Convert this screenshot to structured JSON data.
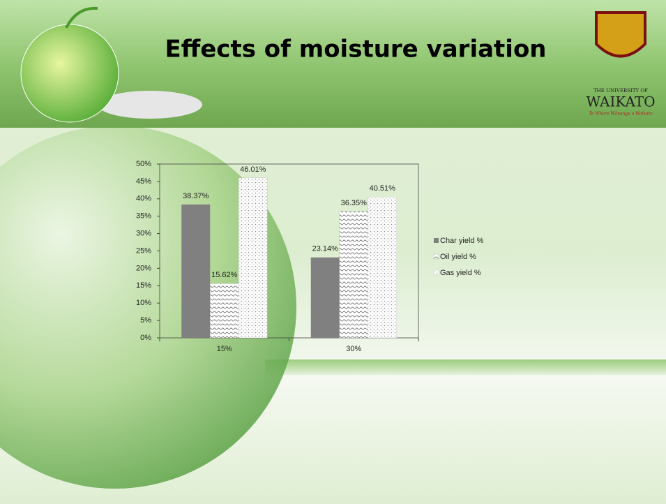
{
  "logo": {
    "line1": "THE UNIVERSITY OF",
    "line2": "WAIKATO",
    "motto": "Te Whare Wānanga o Waikato"
  },
  "chart_data": {
    "type": "bar",
    "title": "Effects of moisture variation",
    "categories": [
      "15%",
      "30%"
    ],
    "series": [
      {
        "name": "Char yield %",
        "color": "#808080",
        "values": [
          38.37,
          23.14
        ],
        "value_labels": [
          "38.37%",
          "23.14%"
        ]
      },
      {
        "name": "Oil yield %",
        "color": "#9a9a9a",
        "values": [
          15.62,
          36.35
        ],
        "value_labels": [
          "15.62%",
          "36.35%"
        ]
      },
      {
        "name": "Gas yield %",
        "color": "#b0b0b0",
        "values": [
          46.01,
          40.51
        ],
        "value_labels": [
          "46.01%",
          "40.51%"
        ]
      }
    ],
    "ylim": [
      0,
      50
    ],
    "yticks": [
      {
        "value": 0,
        "label": "0%"
      },
      {
        "value": 5,
        "label": "5%"
      },
      {
        "value": 10,
        "label": "10%"
      },
      {
        "value": 15,
        "label": "15%"
      },
      {
        "value": 20,
        "label": "20%"
      },
      {
        "value": 25,
        "label": "25%"
      },
      {
        "value": 30,
        "label": "30%"
      },
      {
        "value": 35,
        "label": "35%"
      },
      {
        "value": 40,
        "label": "40%"
      },
      {
        "value": 45,
        "label": "45%"
      },
      {
        "value": 50,
        "label": "50%"
      }
    ],
    "legend": "right"
  }
}
